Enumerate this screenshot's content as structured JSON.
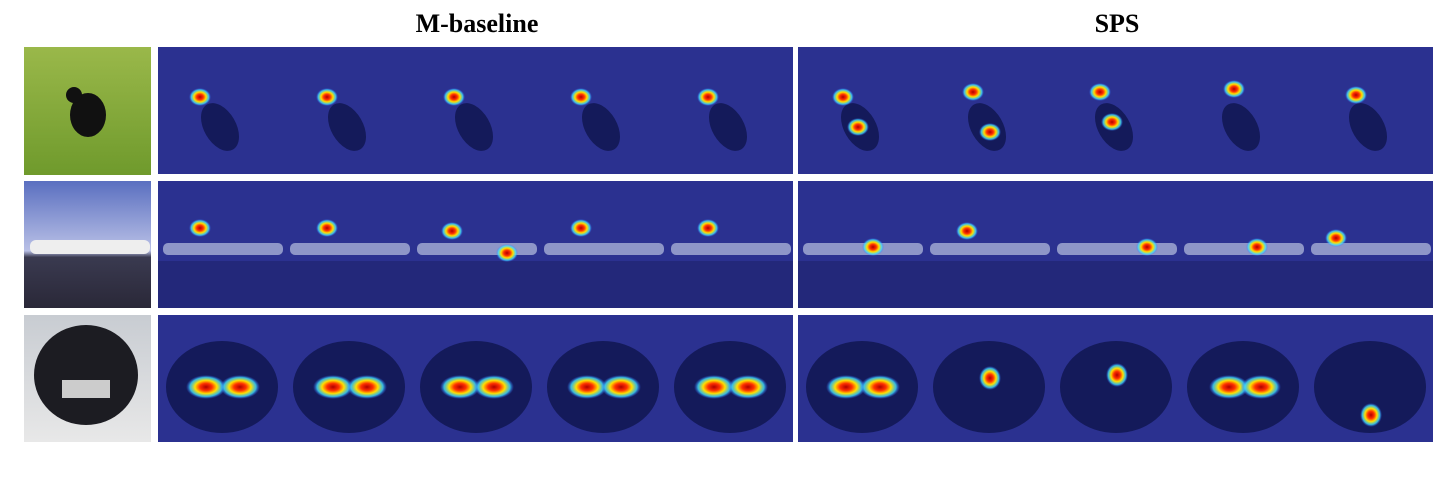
{
  "headers": [
    "M-baseline",
    "SPS"
  ]
}
